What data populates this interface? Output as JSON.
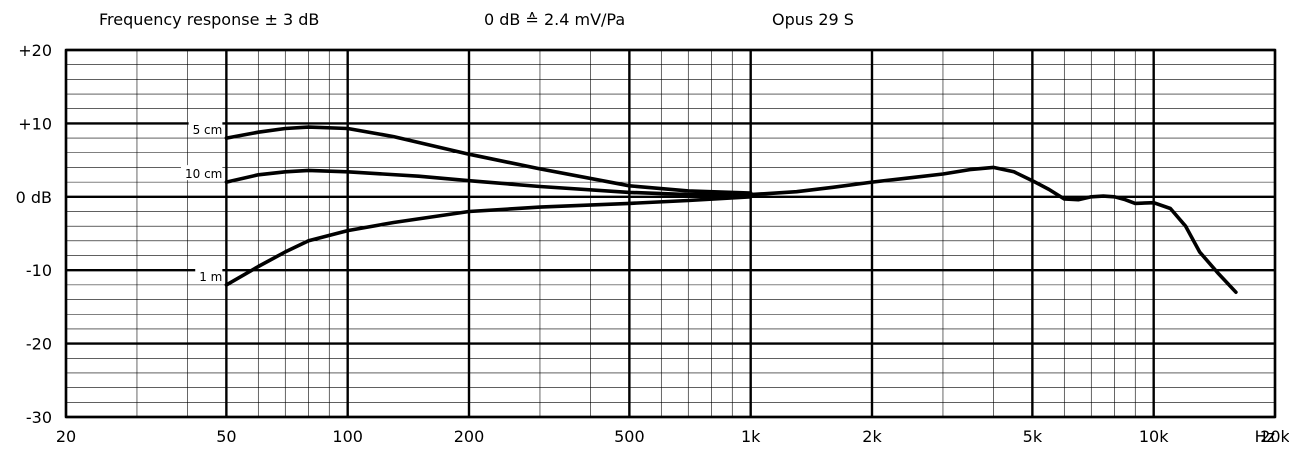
{
  "header": {
    "freq_response": "Frequency response ± 3 dB",
    "sensitivity": "0 dB ≙ 2.4 mV/Pa",
    "model": "Opus 29 S"
  },
  "chart_data": {
    "type": "line",
    "title": "Opus 29 S",
    "xscale": "log",
    "xlim": [
      20,
      20000
    ],
    "ylim": [
      -30,
      20
    ],
    "xunit": "Hz",
    "grid": true,
    "y_ticks": [
      {
        "value": 20,
        "label": "+20"
      },
      {
        "value": 10,
        "label": "+10"
      },
      {
        "value": 0,
        "label": "0 dB"
      },
      {
        "value": -10,
        "label": "-10"
      },
      {
        "value": -20,
        "label": "-20"
      },
      {
        "value": -30,
        "label": "-30"
      }
    ],
    "x_ticks": [
      {
        "value": 20,
        "label": "20"
      },
      {
        "value": 50,
        "label": "50"
      },
      {
        "value": 100,
        "label": "100"
      },
      {
        "value": 200,
        "label": "200"
      },
      {
        "value": 500,
        "label": "500"
      },
      {
        "value": 1000,
        "label": "1k"
      },
      {
        "value": 2000,
        "label": "2k"
      },
      {
        "value": 5000,
        "label": "5k"
      },
      {
        "value": 10000,
        "label": "10k"
      },
      {
        "value": 20000,
        "label": "20k"
      }
    ],
    "series": [
      {
        "name": "5 cm",
        "points": [
          [
            50,
            8
          ],
          [
            60,
            8.8
          ],
          [
            70,
            9.3
          ],
          [
            80,
            9.5
          ],
          [
            100,
            9.3
          ],
          [
            130,
            8.2
          ],
          [
            200,
            5.8
          ],
          [
            300,
            3.8
          ],
          [
            500,
            1.5
          ],
          [
            700,
            0.8
          ],
          [
            1000,
            0.5
          ]
        ]
      },
      {
        "name": "10 cm",
        "points": [
          [
            50,
            2
          ],
          [
            60,
            3
          ],
          [
            70,
            3.4
          ],
          [
            80,
            3.6
          ],
          [
            100,
            3.4
          ],
          [
            150,
            2.8
          ],
          [
            200,
            2.2
          ],
          [
            300,
            1.4
          ],
          [
            500,
            0.6
          ],
          [
            700,
            0.3
          ],
          [
            1000,
            0.3
          ]
        ]
      },
      {
        "name": "1 m",
        "points": [
          [
            50,
            -12
          ],
          [
            60,
            -9.5
          ],
          [
            70,
            -7.5
          ],
          [
            80,
            -6
          ],
          [
            100,
            -4.6
          ],
          [
            130,
            -3.5
          ],
          [
            200,
            -2
          ],
          [
            300,
            -1.4
          ],
          [
            500,
            -0.9
          ],
          [
            700,
            -0.5
          ],
          [
            1000,
            0
          ]
        ]
      },
      {
        "name": "",
        "points": [
          [
            1000,
            0.3
          ],
          [
            1300,
            0.7
          ],
          [
            1600,
            1.3
          ],
          [
            2000,
            2
          ],
          [
            2500,
            2.6
          ],
          [
            3000,
            3.1
          ],
          [
            3500,
            3.7
          ],
          [
            4000,
            4
          ],
          [
            4500,
            3.4
          ],
          [
            5000,
            2.2
          ],
          [
            5500,
            1
          ],
          [
            6000,
            -0.3
          ],
          [
            6500,
            -0.4
          ],
          [
            7000,
            0
          ],
          [
            7500,
            0.1
          ],
          [
            8000,
            0
          ],
          [
            8500,
            -0.4
          ],
          [
            9000,
            -0.9
          ],
          [
            10000,
            -0.8
          ],
          [
            11000,
            -1.6
          ],
          [
            12000,
            -4
          ],
          [
            13000,
            -7.5
          ],
          [
            14500,
            -10.5
          ],
          [
            16000,
            -13
          ]
        ]
      }
    ]
  }
}
